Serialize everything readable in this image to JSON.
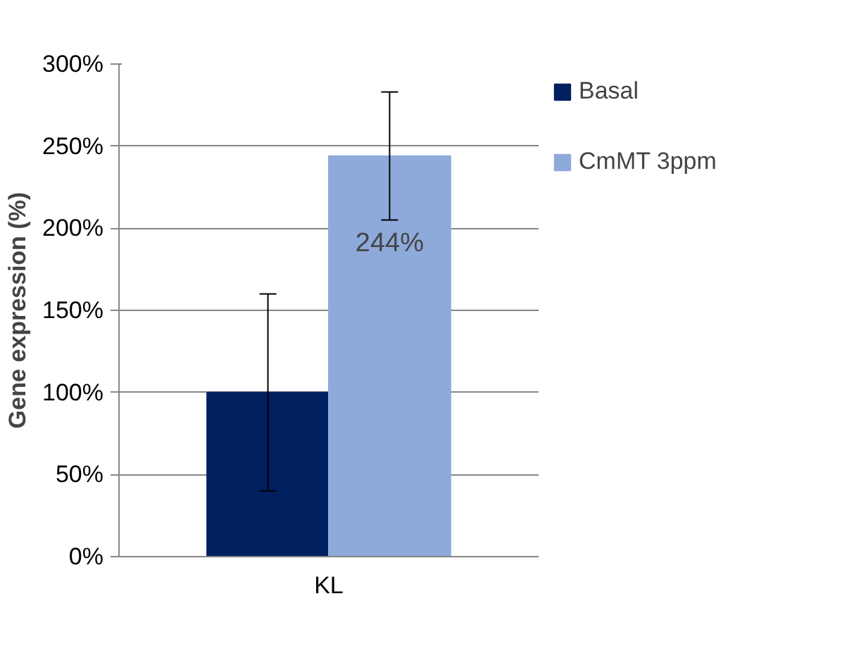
{
  "chart_data": {
    "type": "bar",
    "categories": [
      "KL"
    ],
    "ylabel": "Gene expression (%)",
    "series": [
      {
        "name": "Basal",
        "color": "#002060",
        "values": [
          100
        ],
        "errors": [
          60
        ]
      },
      {
        "name": "CmMT 3ppm",
        "color": "#8eaadb",
        "values": [
          244
        ],
        "errors": [
          39
        ],
        "value_labels": [
          "244%"
        ]
      }
    ],
    "ylim": [
      0,
      300
    ],
    "yticks": [
      {
        "value": 0,
        "label": "0%"
      },
      {
        "value": 50,
        "label": "50%"
      },
      {
        "value": 100,
        "label": "100%"
      },
      {
        "value": 150,
        "label": "150%"
      },
      {
        "value": 200,
        "label": "200%"
      },
      {
        "value": 250,
        "label": "250%"
      },
      {
        "value": 300,
        "label": "300%"
      }
    ],
    "grid": "y",
    "legend": "right"
  }
}
